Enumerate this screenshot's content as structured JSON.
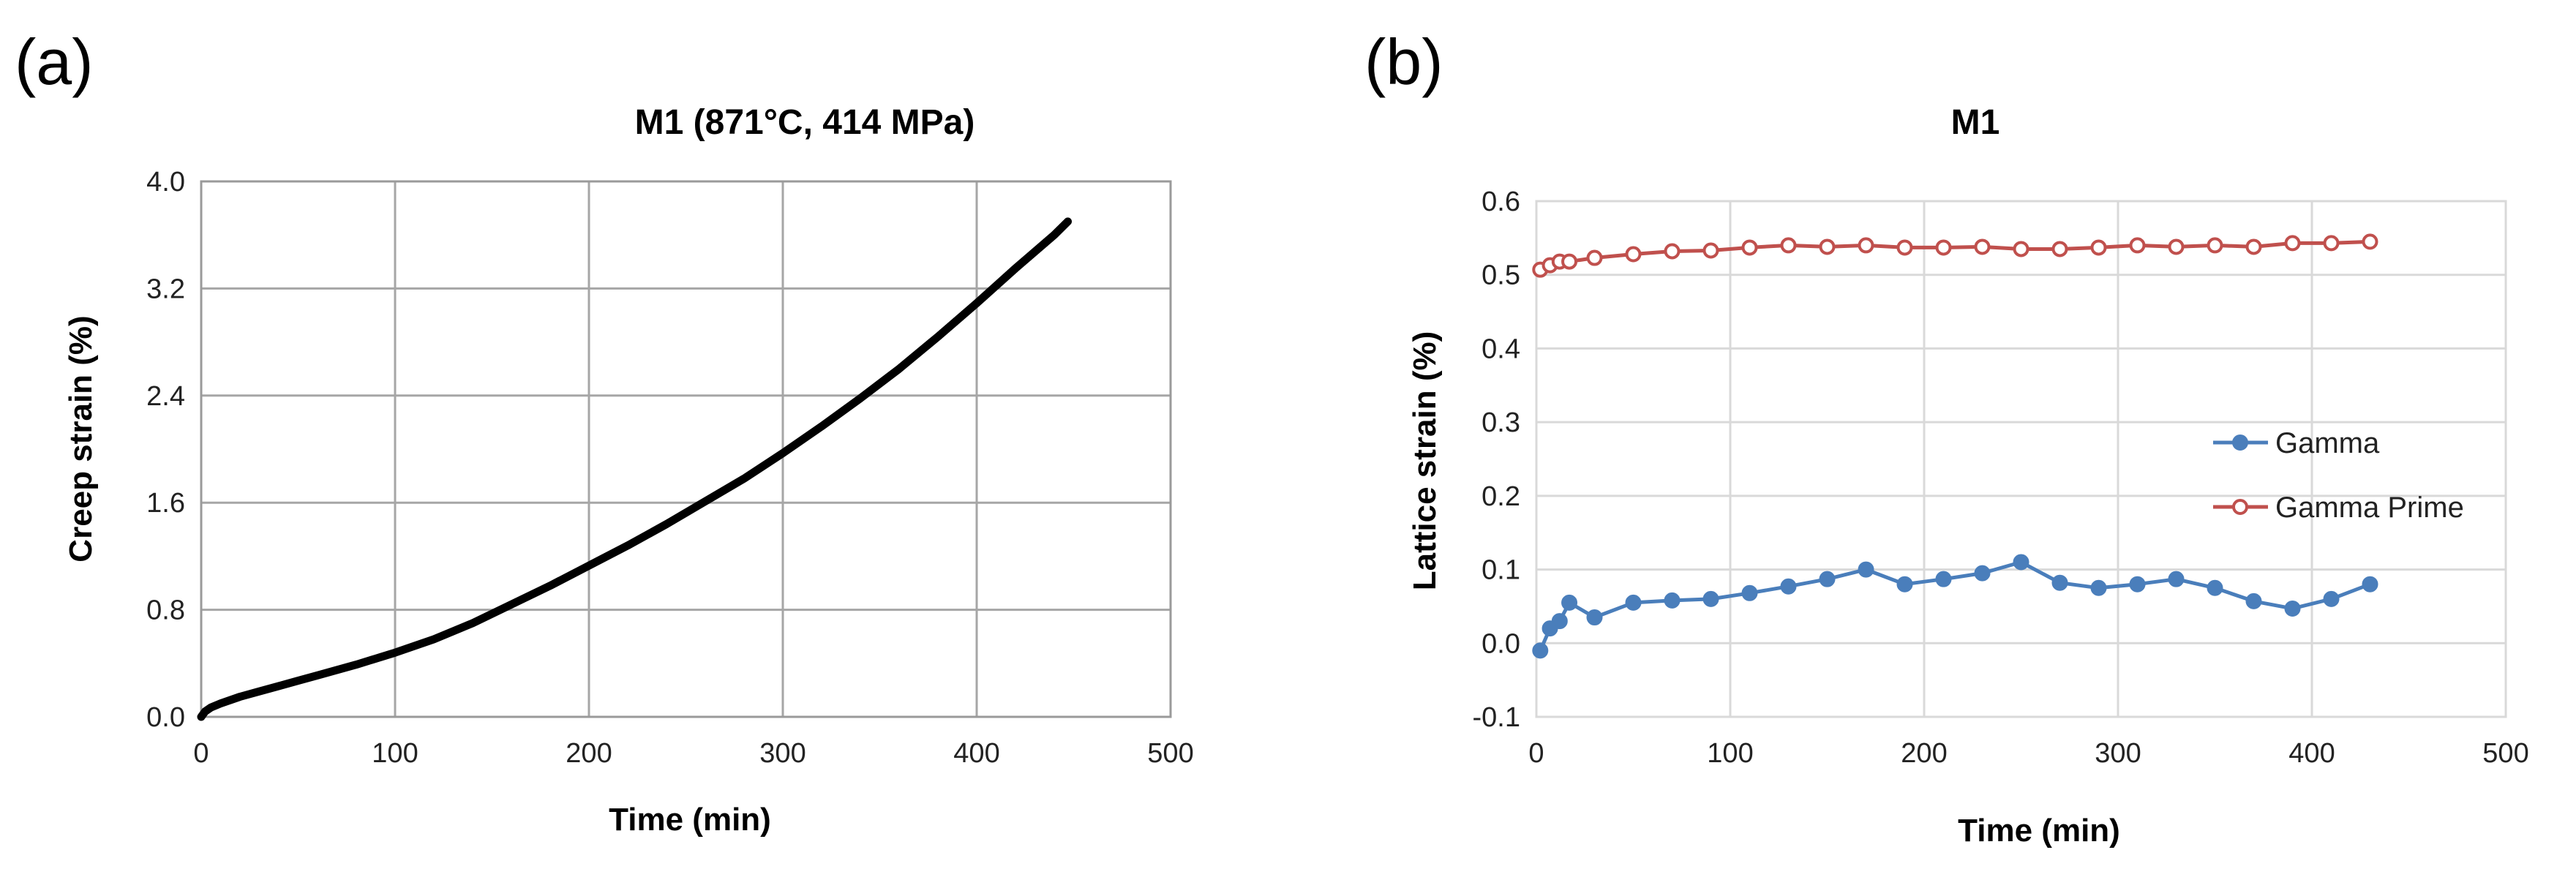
{
  "chart_data": [
    {
      "panel_label": "(a)",
      "type": "line",
      "title": "M1 (871°C, 414 MPa)",
      "xlabel": "Time (min)",
      "ylabel": "Creep strain (%)",
      "xlim": [
        0,
        500
      ],
      "ylim": [
        0,
        4.0
      ],
      "xticks": [
        "0",
        "100",
        "200",
        "300",
        "400",
        "500"
      ],
      "yticks": [
        "0.0",
        "0.8",
        "1.6",
        "2.4",
        "3.2",
        "4.0"
      ],
      "grid": true,
      "series": [
        {
          "name": "Creep strain",
          "color": "#000000",
          "x": [
            0,
            2,
            5,
            10,
            20,
            30,
            40,
            50,
            60,
            80,
            100,
            120,
            140,
            160,
            180,
            200,
            220,
            240,
            260,
            280,
            300,
            320,
            340,
            360,
            380,
            400,
            420,
            440,
            447
          ],
          "y": [
            0.0,
            0.04,
            0.07,
            0.1,
            0.15,
            0.19,
            0.23,
            0.27,
            0.31,
            0.39,
            0.48,
            0.58,
            0.7,
            0.84,
            0.98,
            1.13,
            1.28,
            1.44,
            1.61,
            1.78,
            1.97,
            2.17,
            2.38,
            2.6,
            2.84,
            3.09,
            3.35,
            3.6,
            3.7
          ]
        }
      ]
    },
    {
      "panel_label": "(b)",
      "type": "line",
      "title": "M1",
      "xlabel": "Time (min)",
      "ylabel": "Lattice strain (%)",
      "xlim": [
        0,
        500
      ],
      "ylim": [
        -0.1,
        0.6
      ],
      "xticks": [
        "0",
        "100",
        "200",
        "300",
        "400",
        "500"
      ],
      "yticks": [
        "-0.1",
        "0.0",
        "0.1",
        "0.2",
        "0.3",
        "0.4",
        "0.5",
        "0.6"
      ],
      "grid": true,
      "legend": "right",
      "series": [
        {
          "name": "Gamma",
          "color": "#4a7ebb",
          "marker": "filled-circle",
          "x": [
            2,
            7,
            12,
            17,
            30,
            50,
            70,
            90,
            110,
            130,
            150,
            170,
            190,
            210,
            230,
            250,
            270,
            290,
            310,
            330,
            350,
            370,
            390,
            410,
            430
          ],
          "y": [
            -0.01,
            0.02,
            0.03,
            0.055,
            0.035,
            0.055,
            0.058,
            0.06,
            0.068,
            0.077,
            0.087,
            0.1,
            0.08,
            0.087,
            0.095,
            0.11,
            0.082,
            0.075,
            0.08,
            0.087,
            0.075,
            0.057,
            0.047,
            0.06,
            0.08
          ]
        },
        {
          "name": "Gamma Prime",
          "color": "#c0504d",
          "marker": "open-circle",
          "x": [
            2,
            7,
            12,
            17,
            30,
            50,
            70,
            90,
            110,
            130,
            150,
            170,
            190,
            210,
            230,
            250,
            270,
            290,
            310,
            330,
            350,
            370,
            390,
            410,
            430
          ],
          "y": [
            0.507,
            0.513,
            0.518,
            0.518,
            0.523,
            0.528,
            0.532,
            0.533,
            0.537,
            0.54,
            0.538,
            0.54,
            0.537,
            0.537,
            0.538,
            0.535,
            0.535,
            0.537,
            0.54,
            0.538,
            0.54,
            0.538,
            0.543,
            0.543,
            0.545
          ]
        }
      ]
    }
  ]
}
